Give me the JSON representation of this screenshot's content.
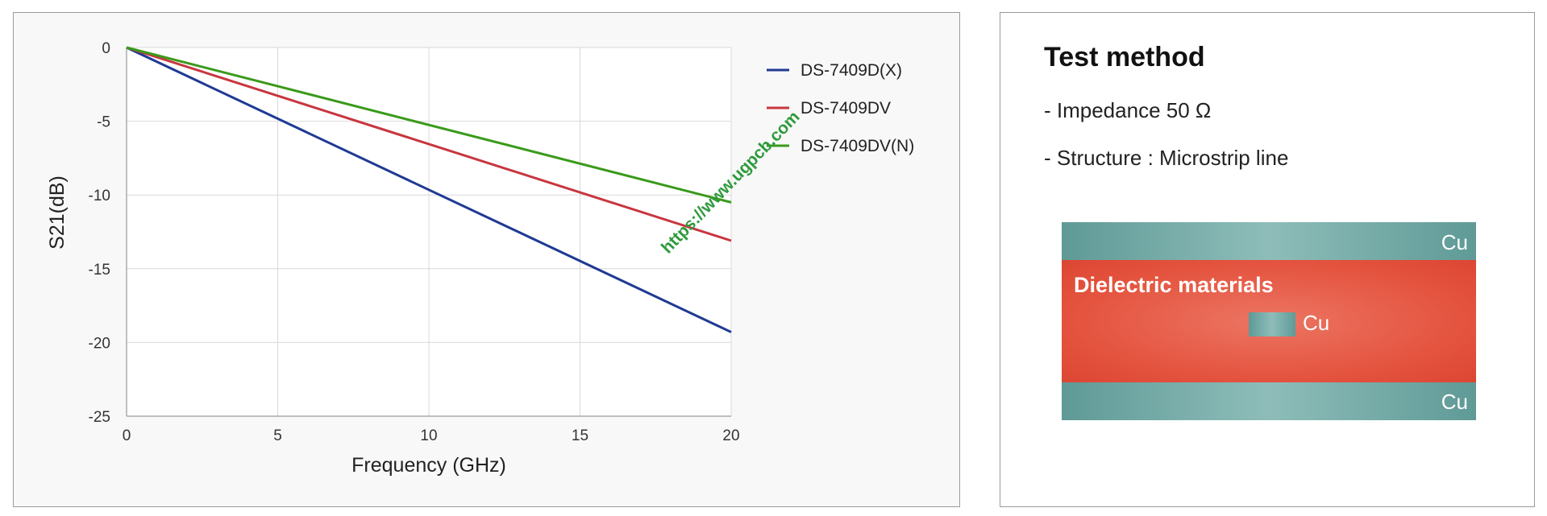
{
  "chart_data": {
    "type": "line",
    "xlabel": "Frequency (GHz)",
    "ylabel": "S21(dB)",
    "xlim": [
      0,
      20
    ],
    "ylim": [
      -25,
      0
    ],
    "x_ticks": [
      "0",
      "5",
      "10",
      "15",
      "20"
    ],
    "y_ticks": [
      "0",
      "-5",
      "-10",
      "-15",
      "-20",
      "-25"
    ],
    "grid": true,
    "legend_position": "top-right",
    "series": [
      {
        "name": "DS-7409D(X)",
        "color": "#1f3a93",
        "x": [
          0,
          20
        ],
        "y": [
          0,
          -19.3
        ]
      },
      {
        "name": "DS-7409DV",
        "color": "#c8363f",
        "x": [
          0,
          20
        ],
        "y": [
          0,
          -13.1
        ]
      },
      {
        "name": "DS-7409DV(N)",
        "color": "#3a9a1a",
        "x": [
          0,
          20
        ],
        "y": [
          0,
          -10.5
        ]
      }
    ],
    "watermark": "https://www.ugpcb.com"
  },
  "test_method": {
    "title": "Test method",
    "items": [
      "- Impedance 50 Ω",
      "- Structure : Microstrip line"
    ],
    "diagram": {
      "dielectric_label": "Dielectric materials",
      "cu_top": "Cu",
      "cu_strip": "Cu",
      "cu_bottom": "Cu"
    }
  }
}
